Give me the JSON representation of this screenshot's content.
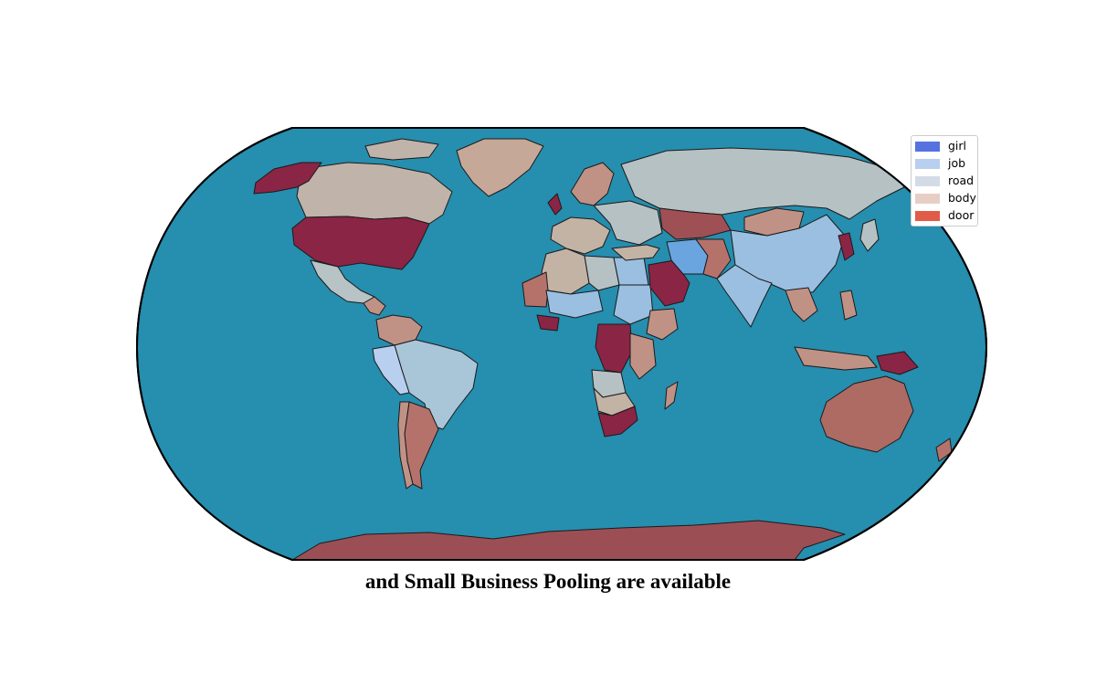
{
  "caption": "and Small Business Pooling are available",
  "colors": {
    "ocean": "#268eae",
    "outline": "#000000",
    "country_border": "#1a1a1a"
  },
  "legend": {
    "items": [
      {
        "label": "girl",
        "color": "#5572e0"
      },
      {
        "label": "job",
        "color": "#b8cff0"
      },
      {
        "label": "road",
        "color": "#d3dbe6"
      },
      {
        "label": "body",
        "color": "#e7cec4"
      },
      {
        "label": "door",
        "color": "#e05c49"
      }
    ]
  },
  "regions": [
    {
      "name": "Canada",
      "color": "#bfb3aa"
    },
    {
      "name": "Alaska",
      "color": "#8b2545"
    },
    {
      "name": "United States",
      "color": "#8b2545"
    },
    {
      "name": "Greenland",
      "color": "#c5a898"
    },
    {
      "name": "Mexico",
      "color": "#b7c3c5"
    },
    {
      "name": "Brazil",
      "color": "#a9c5d8"
    },
    {
      "name": "Argentina",
      "color": "#b5726b"
    },
    {
      "name": "Russia",
      "color": "#b6c1c4"
    },
    {
      "name": "China",
      "color": "#9bbfe1"
    },
    {
      "name": "India",
      "color": "#9bbfe1"
    },
    {
      "name": "Australia",
      "color": "#ad6b63"
    },
    {
      "name": "Antarctica",
      "color": "#9b4f55"
    },
    {
      "name": "Saudi Arabia",
      "color": "#8b2545"
    },
    {
      "name": "Iran",
      "color": "#6aa5e0"
    },
    {
      "name": "Mongolia",
      "color": "#9f5054"
    },
    {
      "name": "Kazakhstan",
      "color": "#b6c1c4"
    },
    {
      "name": "Algeria",
      "color": "#c3b3a5"
    },
    {
      "name": "Libya",
      "color": "#b6c1c4"
    },
    {
      "name": "Egypt",
      "color": "#9bbfe1"
    },
    {
      "name": "Sudan",
      "color": "#9bbfe1"
    },
    {
      "name": "DR Congo",
      "color": "#8b2545"
    },
    {
      "name": "South Africa",
      "color": "#8b2545"
    },
    {
      "name": "Ethiopia",
      "color": "#c09285"
    },
    {
      "name": "Madagascar",
      "color": "#c09285"
    },
    {
      "name": "Indonesia",
      "color": "#c09285"
    },
    {
      "name": "Papua New Guinea",
      "color": "#8b2545"
    }
  ]
}
